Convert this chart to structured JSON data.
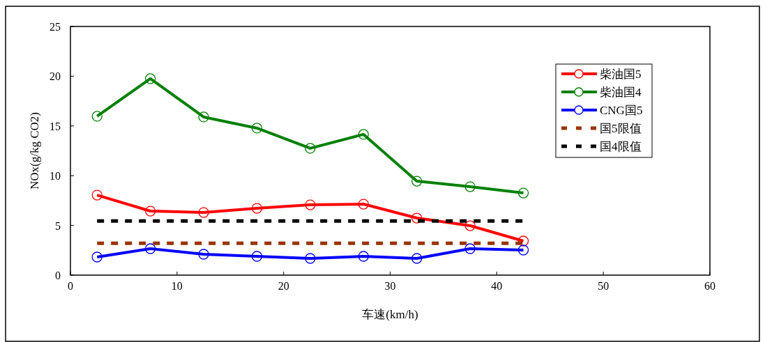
{
  "chart_data": {
    "type": "line",
    "xlabel": "车速(km/h)",
    "ylabel": "NOx(g/kg CO2)",
    "x": [
      2.5,
      7.5,
      12.5,
      17.5,
      22.5,
      27.5,
      32.5,
      37.5,
      42.5
    ],
    "xlim": [
      0,
      60
    ],
    "xticks": [
      0,
      10,
      20,
      30,
      40,
      50,
      60
    ],
    "ylim": [
      0,
      25
    ],
    "yticks": [
      0,
      5,
      10,
      15,
      20,
      25
    ],
    "grid": false,
    "legend": "top right",
    "series": [
      {
        "name": "柴油国5",
        "color": "#ff0000",
        "marker": "circle",
        "line_style": "solid",
        "values": [
          8.05,
          6.44,
          6.3,
          6.72,
          7.07,
          7.14,
          5.74,
          4.97,
          3.43
        ]
      },
      {
        "name": "柴油国4",
        "color": "#008000",
        "marker": "circle",
        "line_style": "solid",
        "values": [
          15.97,
          19.75,
          15.9,
          14.78,
          12.75,
          14.15,
          9.45,
          8.89,
          8.26
        ]
      },
      {
        "name": "CNG国5",
        "color": "#0000ff",
        "marker": "circle",
        "line_style": "solid",
        "values": [
          1.82,
          2.66,
          2.1,
          1.89,
          1.68,
          1.89,
          1.68,
          2.66,
          2.52
        ]
      },
      {
        "name": "国5限值",
        "color": "#993300",
        "marker": "none",
        "line_style": "dashed",
        "values": [
          3.2,
          3.2,
          3.2,
          3.2,
          3.2,
          3.2,
          3.2,
          3.2,
          3.2
        ]
      },
      {
        "name": "国4限值",
        "color": "#000000",
        "marker": "none",
        "line_style": "dashed",
        "values": [
          5.45,
          5.45,
          5.45,
          5.45,
          5.45,
          5.45,
          5.45,
          5.45,
          5.45
        ]
      }
    ]
  }
}
